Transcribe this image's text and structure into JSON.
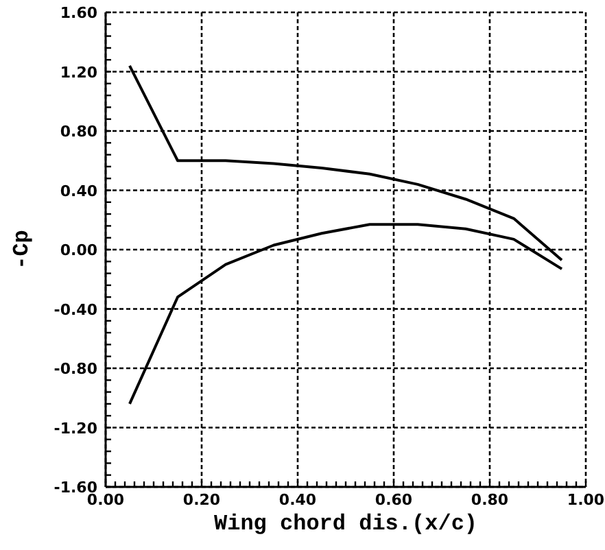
{
  "chart_data": {
    "type": "line",
    "xlabel": "Wing chord dis.(x/c)",
    "ylabel": "-Cp",
    "xlim": [
      0,
      1
    ],
    "ylim": [
      -1.6,
      1.6
    ],
    "xticks": [
      {
        "value": 0,
        "label": "0.00"
      },
      {
        "value": 0.2,
        "label": "0.20"
      },
      {
        "value": 0.4,
        "label": "0.40"
      },
      {
        "value": 0.6,
        "label": "0.60"
      },
      {
        "value": 0.8,
        "label": "0.80"
      },
      {
        "value": 1,
        "label": "1.00"
      }
    ],
    "yticks": [
      {
        "value": -1.6,
        "label": "-1.60"
      },
      {
        "value": -1.2,
        "label": "-1.20"
      },
      {
        "value": -0.8,
        "label": "-0.80"
      },
      {
        "value": -0.4,
        "label": "-0.40"
      },
      {
        "value": 0,
        "label": "0.00"
      },
      {
        "value": 0.4,
        "label": "0.40"
      },
      {
        "value": 0.8,
        "label": "0.80"
      },
      {
        "value": 1.2,
        "label": "1.20"
      },
      {
        "value": 1.6,
        "label": "1.60"
      }
    ],
    "grid": true,
    "marker": "none",
    "line_style": "solid",
    "series": [
      {
        "color": "#000000",
        "x": [
          0.05,
          0.15,
          0.25,
          0.35,
          0.45,
          0.55,
          0.65,
          0.75,
          0.85,
          0.95
        ],
        "values": [
          1.24,
          0.6,
          0.6,
          0.58,
          0.55,
          0.51,
          0.44,
          0.34,
          0.21,
          -0.07
        ]
      },
      {
        "color": "#000000",
        "x": [
          0.05,
          0.15,
          0.25,
          0.35,
          0.45,
          0.55,
          0.65,
          0.75,
          0.85,
          0.95
        ],
        "values": [
          -1.04,
          -0.32,
          -0.1,
          0.03,
          0.11,
          0.17,
          0.17,
          0.14,
          0.07,
          -0.13
        ]
      }
    ]
  }
}
